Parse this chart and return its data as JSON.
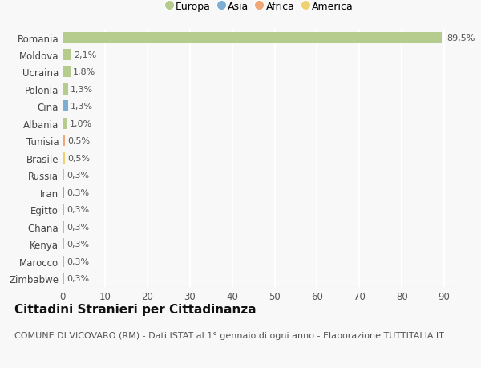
{
  "countries": [
    "Romania",
    "Moldova",
    "Ucraina",
    "Polonia",
    "Cina",
    "Albania",
    "Tunisia",
    "Brasile",
    "Russia",
    "Iran",
    "Egitto",
    "Ghana",
    "Kenya",
    "Marocco",
    "Zimbabwe"
  ],
  "values": [
    89.5,
    2.1,
    1.8,
    1.3,
    1.3,
    1.0,
    0.5,
    0.5,
    0.3,
    0.3,
    0.3,
    0.3,
    0.3,
    0.3,
    0.3
  ],
  "labels": [
    "89,5%",
    "2,1%",
    "1,8%",
    "1,3%",
    "1,3%",
    "1,0%",
    "0,5%",
    "0,5%",
    "0,3%",
    "0,3%",
    "0,3%",
    "0,3%",
    "0,3%",
    "0,3%",
    "0,3%"
  ],
  "continents": [
    "Europa",
    "Europa",
    "Europa",
    "Europa",
    "Asia",
    "Europa",
    "Africa",
    "America",
    "Europa",
    "Asia",
    "Africa",
    "Africa",
    "Africa",
    "Africa",
    "Africa"
  ],
  "continent_colors": {
    "Europa": "#b5cc8e",
    "Asia": "#7bafd4",
    "Africa": "#f0a878",
    "America": "#f0d070"
  },
  "bar_height": 0.65,
  "background_color": "#f8f8f8",
  "grid_color": "#ffffff",
  "xlim": [
    0,
    93
  ],
  "xlabel_ticks": [
    0,
    10,
    20,
    30,
    40,
    50,
    60,
    70,
    80,
    90
  ],
  "title": "Cittadini Stranieri per Cittadinanza",
  "subtitle": "COMUNE DI VICOVARO (RM) - Dati ISTAT al 1° gennaio di ogni anno - Elaborazione TUTTITALIA.IT",
  "legend_items": [
    "Europa",
    "Asia",
    "Africa",
    "America"
  ],
  "title_fontsize": 11,
  "subtitle_fontsize": 8,
  "tick_fontsize": 8.5,
  "label_fontsize": 8
}
